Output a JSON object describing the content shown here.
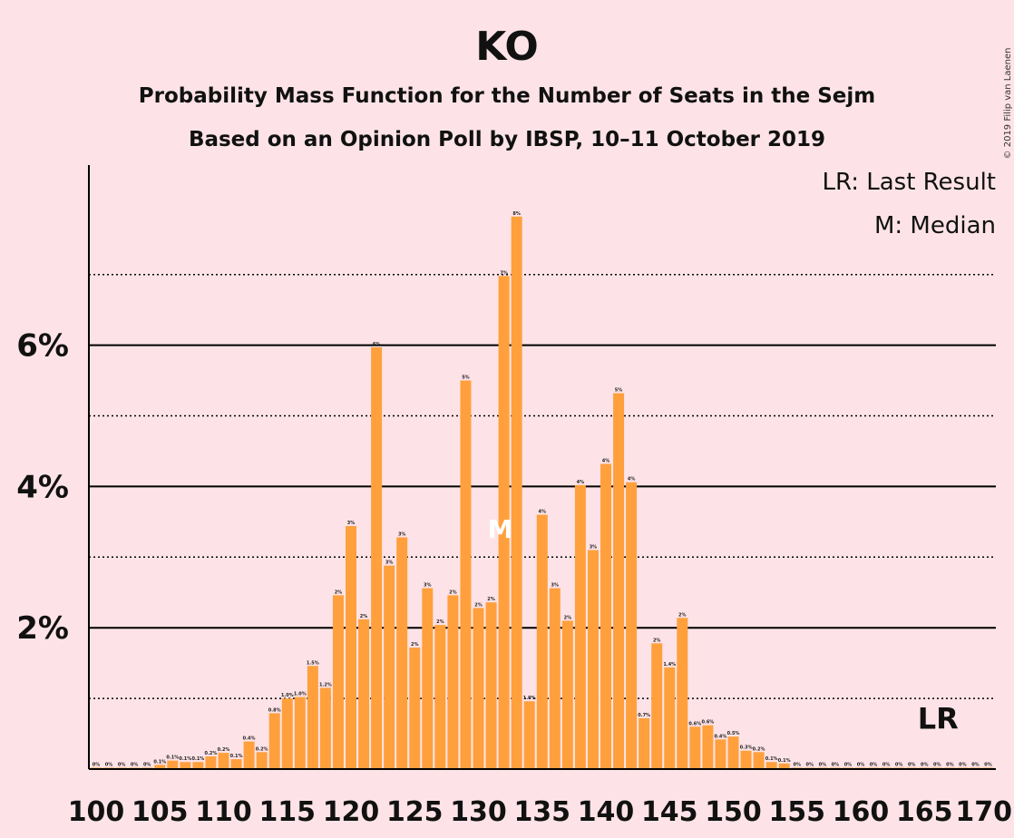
{
  "chart_data": {
    "type": "bar",
    "title": "KO",
    "subtitle": "Probability Mass Function for the Number of Seats in the Sejm",
    "subtitle2": "Based on an Opinion Poll by IBSP, 10–11 October 2019",
    "copyright": "© 2019 Filip van Laenen",
    "legend": [
      "LR: Last Result",
      "M: Median"
    ],
    "legend_position": "top-right",
    "x_start": 100,
    "x_ticks": [
      "100",
      "105",
      "110",
      "115",
      "120",
      "125",
      "130",
      "135",
      "140",
      "145",
      "150",
      "155",
      "160",
      "165",
      "170"
    ],
    "y_ticks": [
      "2%",
      "4%",
      "6%"
    ],
    "ylim": [
      0,
      8.5
    ],
    "values": [
      0.02,
      0.02,
      0.02,
      0.02,
      0.02,
      0.06,
      0.12,
      0.1,
      0.1,
      0.18,
      0.23,
      0.14,
      0.39,
      0.24,
      0.79,
      1.0,
      1.02,
      1.46,
      1.15,
      2.46,
      3.44,
      2.12,
      5.97,
      2.88,
      3.28,
      1.72,
      2.56,
      2.04,
      2.46,
      5.5,
      2.28,
      2.36,
      6.98,
      7.82,
      0.96,
      3.6,
      2.56,
      2.1,
      4.02,
      3.1,
      4.32,
      5.32,
      4.06,
      0.72,
      1.78,
      1.44,
      2.14,
      0.6,
      0.62,
      0.42,
      0.46,
      0.26,
      0.24,
      0.1,
      0.08,
      0.02,
      0.02,
      0.02,
      0.02,
      0.02,
      0.02,
      0.02,
      0.02,
      0.02,
      0.02,
      0.02,
      0.02,
      0.02,
      0.02,
      0.02,
      0.02
    ],
    "labels": [
      "0%",
      "0%",
      "0%",
      "0%",
      "0%",
      "0.1%",
      "0.1%",
      "0.1%",
      "0.1%",
      "0.2%",
      "0.2%",
      "0.1%",
      "0.4%",
      "0.2%",
      "0.8%",
      "1.0%",
      "1.0%",
      "1.5%",
      "1.2%",
      "2%",
      "3%",
      "2%",
      "6%",
      "3%",
      "3%",
      "2%",
      "3%",
      "2%",
      "2%",
      "5%",
      "2%",
      "2%",
      "7%",
      "8%",
      "1.0%",
      "4%",
      "3%",
      "2%",
      "4%",
      "3%",
      "4%",
      "5%",
      "4%",
      "0.7%",
      "2%",
      "1.4%",
      "2%",
      "0.6%",
      "0.6%",
      "0.4%",
      "0.5%",
      "0.3%",
      "0.2%",
      "0.1%",
      "0.1%",
      "0%",
      "0%",
      "0%",
      "0%",
      "0%",
      "0%",
      "0%",
      "0%",
      "0%",
      "0%",
      "0%",
      "0%",
      "0%",
      "0%",
      "0%",
      "0%"
    ],
    "median_seat": 132,
    "median_marker": "M",
    "last_result_seat": 166,
    "last_result_marker": "LR",
    "gridlines": {
      "solid": [
        2,
        4,
        6
      ],
      "dotted": [
        1,
        3,
        5,
        7
      ]
    }
  }
}
